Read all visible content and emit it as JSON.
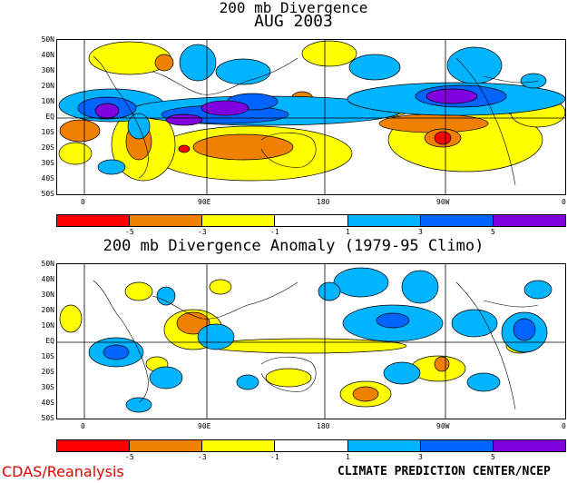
{
  "titles": {
    "main_line1": "200 mb Divergence",
    "main_line2": "AUG 2003",
    "anomaly": "200 mb Divergence Anomaly (1979-95 Climo)"
  },
  "axes": {
    "lat_labels": [
      "50N",
      "40N",
      "30N",
      "20N",
      "10N",
      "EQ",
      "10S",
      "20S",
      "30S",
      "40S",
      "50S"
    ],
    "lon_labels": [
      "0",
      "90E",
      "180",
      "90W",
      "0"
    ]
  },
  "colorbar": {
    "labels": [
      "-5",
      "-3",
      "-1",
      "1",
      "3",
      "5"
    ],
    "colors": [
      "#ff0000",
      "#f08000",
      "#ffff00",
      "#ffffff",
      "#00b4ff",
      "#0064ff",
      "#8000e0"
    ]
  },
  "credits": {
    "left": "CDAS/Reanalysis",
    "right": "CLIMATE PREDICTION CENTER/NCEP"
  }
}
